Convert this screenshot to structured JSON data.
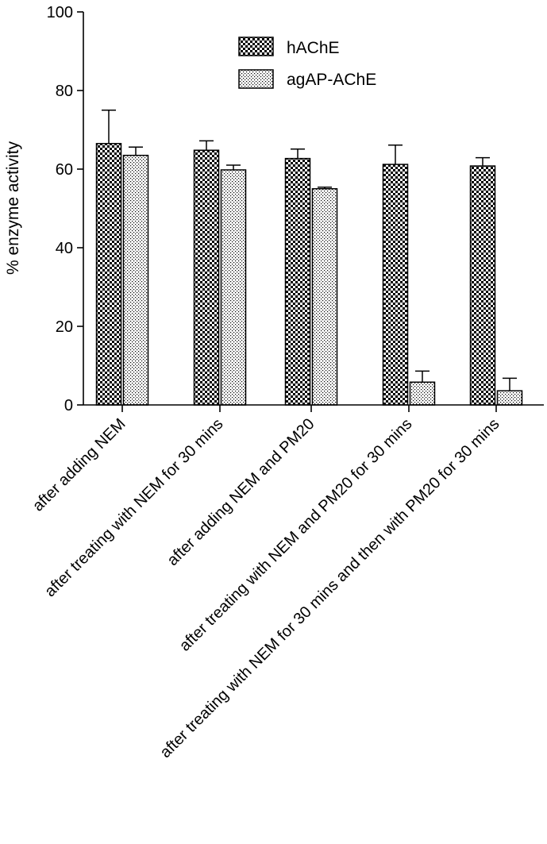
{
  "chart_data": {
    "type": "bar",
    "ylabel": "% enzyme activity",
    "xlabel": "",
    "ylim": [
      0,
      100
    ],
    "yticks": [
      0,
      20,
      40,
      60,
      80,
      100
    ],
    "ytick_labels": [
      "0",
      "20",
      "40",
      "60",
      "80",
      "100"
    ],
    "grid": false,
    "legend_position": "top-right",
    "categories": [
      "after adding NEM",
      "after treating with NEM for 30 mins",
      "after adding NEM and PM20",
      "after treating with NEM and PM20 for 30 mins",
      "after treating with NEM for 30 mins and then with PM20 for 30 mins"
    ],
    "series": [
      {
        "name": "hAChE",
        "pattern": "checkerboard",
        "values": [
          66.5,
          64.8,
          62.7,
          61.2,
          60.8
        ],
        "errors": [
          8.5,
          2.4,
          2.4,
          4.9,
          2.1
        ]
      },
      {
        "name": "agAP-AChE",
        "pattern": "dotted",
        "values": [
          63.5,
          59.8,
          55.0,
          5.8,
          3.6
        ],
        "errors": [
          2.1,
          1.2,
          0.4,
          2.8,
          3.2
        ]
      }
    ]
  }
}
